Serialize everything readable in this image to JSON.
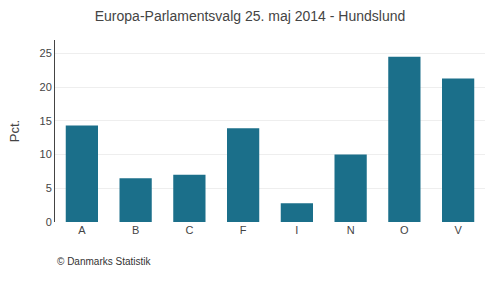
{
  "chart_data": {
    "type": "bar",
    "title": "Europa-Parlamentsvalg 25. maj 2014 - Hundslund",
    "ylabel": "Pct.",
    "annotations": [
      "© Danmarks Statistik"
    ],
    "categories": [
      "A",
      "B",
      "C",
      "F",
      "I",
      "N",
      "O",
      "V"
    ],
    "values": [
      14.3,
      6.5,
      7.0,
      13.9,
      2.8,
      10.0,
      24.5,
      21.3
    ],
    "color": "#1b6f8a",
    "ylim": [
      0,
      27
    ],
    "yticks": [
      0,
      5,
      10,
      15,
      20,
      25
    ],
    "grid": true
  }
}
